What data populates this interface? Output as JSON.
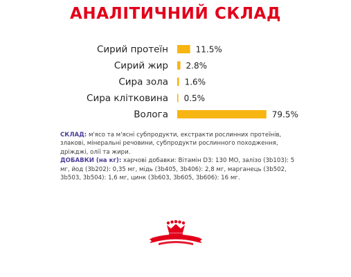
{
  "title": "АНАЛІТИЧНИЙ СКЛАД",
  "colors": {
    "title": "#e2001a",
    "bar": "#f7b512",
    "text_key": "#4a3f9a",
    "logo": "#e2001a"
  },
  "chart_data": {
    "type": "bar",
    "orientation": "horizontal",
    "categories": [
      "Сирий протеїн",
      "Сирий жир",
      "Сира зола",
      "Сира клітковина",
      "Волога"
    ],
    "values": [
      11.5,
      2.8,
      1.6,
      0.5,
      79.5
    ],
    "data_labels": [
      "11.5%",
      "2.8%",
      "1.6%",
      "0.5%",
      "79.5%"
    ],
    "grid": false,
    "legend": "none"
  },
  "composition": {
    "label": "СКЛАД:",
    "text": "м'ясо та м'ясні субпродукти, екстракти рослинних протеїнів, злакові, мінеральні речовини, субпродукти рослинного походження, дріжджі, олії та жири."
  },
  "additives": {
    "label": "ДОБАВКИ (на кг):",
    "text": "харчові добавки: Вітамін D3: 130 МО, залізо (3b103): 5 мг, йод (3b202): 0,35 мг, мідь (3b405, 3b406): 2,8 мг, марганець (3b502, 3b503, 3b504): 1,6 мг, цинк (3b603, 3b605, 3b606): 16 мг."
  },
  "logo": {
    "name": "royal-canin-logo"
  }
}
